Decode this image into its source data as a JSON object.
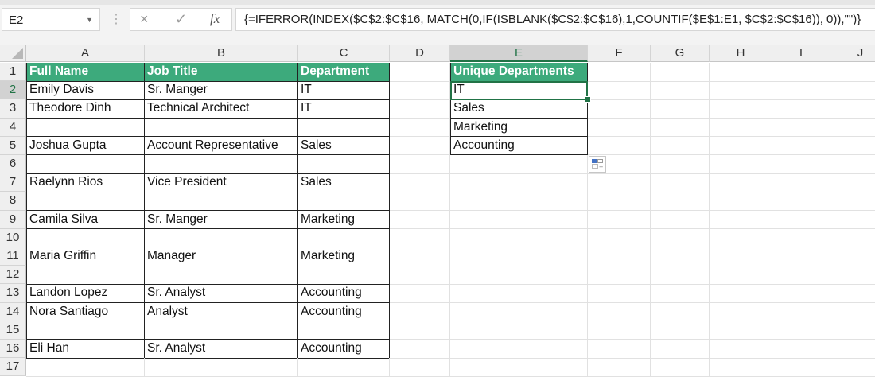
{
  "formula_bar": {
    "name_box": "E2",
    "cancel_icon": "×",
    "enter_icon": "✓",
    "fx_label": "fx",
    "formula": "{=IFERROR(INDEX($C$2:$C$16, MATCH(0,IF(ISBLANK($C$2:$C$16),1,COUNTIF($E$1:E1, $C$2:$C$16)), 0)),\"\")}"
  },
  "columns": [
    "A",
    "B",
    "C",
    "D",
    "E",
    "F",
    "G",
    "H",
    "I",
    "J"
  ],
  "rows": [
    "1",
    "2",
    "3",
    "4",
    "5",
    "6",
    "7",
    "8",
    "9",
    "10",
    "11",
    "12",
    "13",
    "14",
    "15",
    "16",
    "17"
  ],
  "selected_cell": "E2",
  "header_color": "#3daa7c",
  "table": {
    "headers": [
      "Full Name",
      "Job Title",
      "Department"
    ],
    "rows": [
      [
        "Emily Davis",
        "Sr. Manger",
        "IT"
      ],
      [
        "Theodore Dinh",
        "Technical Architect",
        "IT"
      ],
      [
        "",
        "",
        ""
      ],
      [
        "Joshua Gupta",
        "Account Representative",
        "Sales"
      ],
      [
        "",
        "",
        ""
      ],
      [
        "Raelynn Rios",
        "Vice President",
        "Sales"
      ],
      [
        "",
        "",
        ""
      ],
      [
        "Camila Silva",
        "Sr. Manger",
        "Marketing"
      ],
      [
        "",
        "",
        ""
      ],
      [
        "Maria Griffin",
        "Manager",
        "Marketing"
      ],
      [
        "",
        "",
        ""
      ],
      [
        "Landon Lopez",
        "Sr. Analyst",
        "Accounting"
      ],
      [
        "Nora Santiago",
        "Analyst",
        "Accounting"
      ],
      [
        "",
        "",
        ""
      ],
      [
        "Eli Han",
        "Sr. Analyst",
        "Accounting"
      ]
    ]
  },
  "unique": {
    "header": "Unique Departments",
    "values": [
      "IT",
      "Sales",
      "Marketing",
      "Accounting"
    ]
  }
}
